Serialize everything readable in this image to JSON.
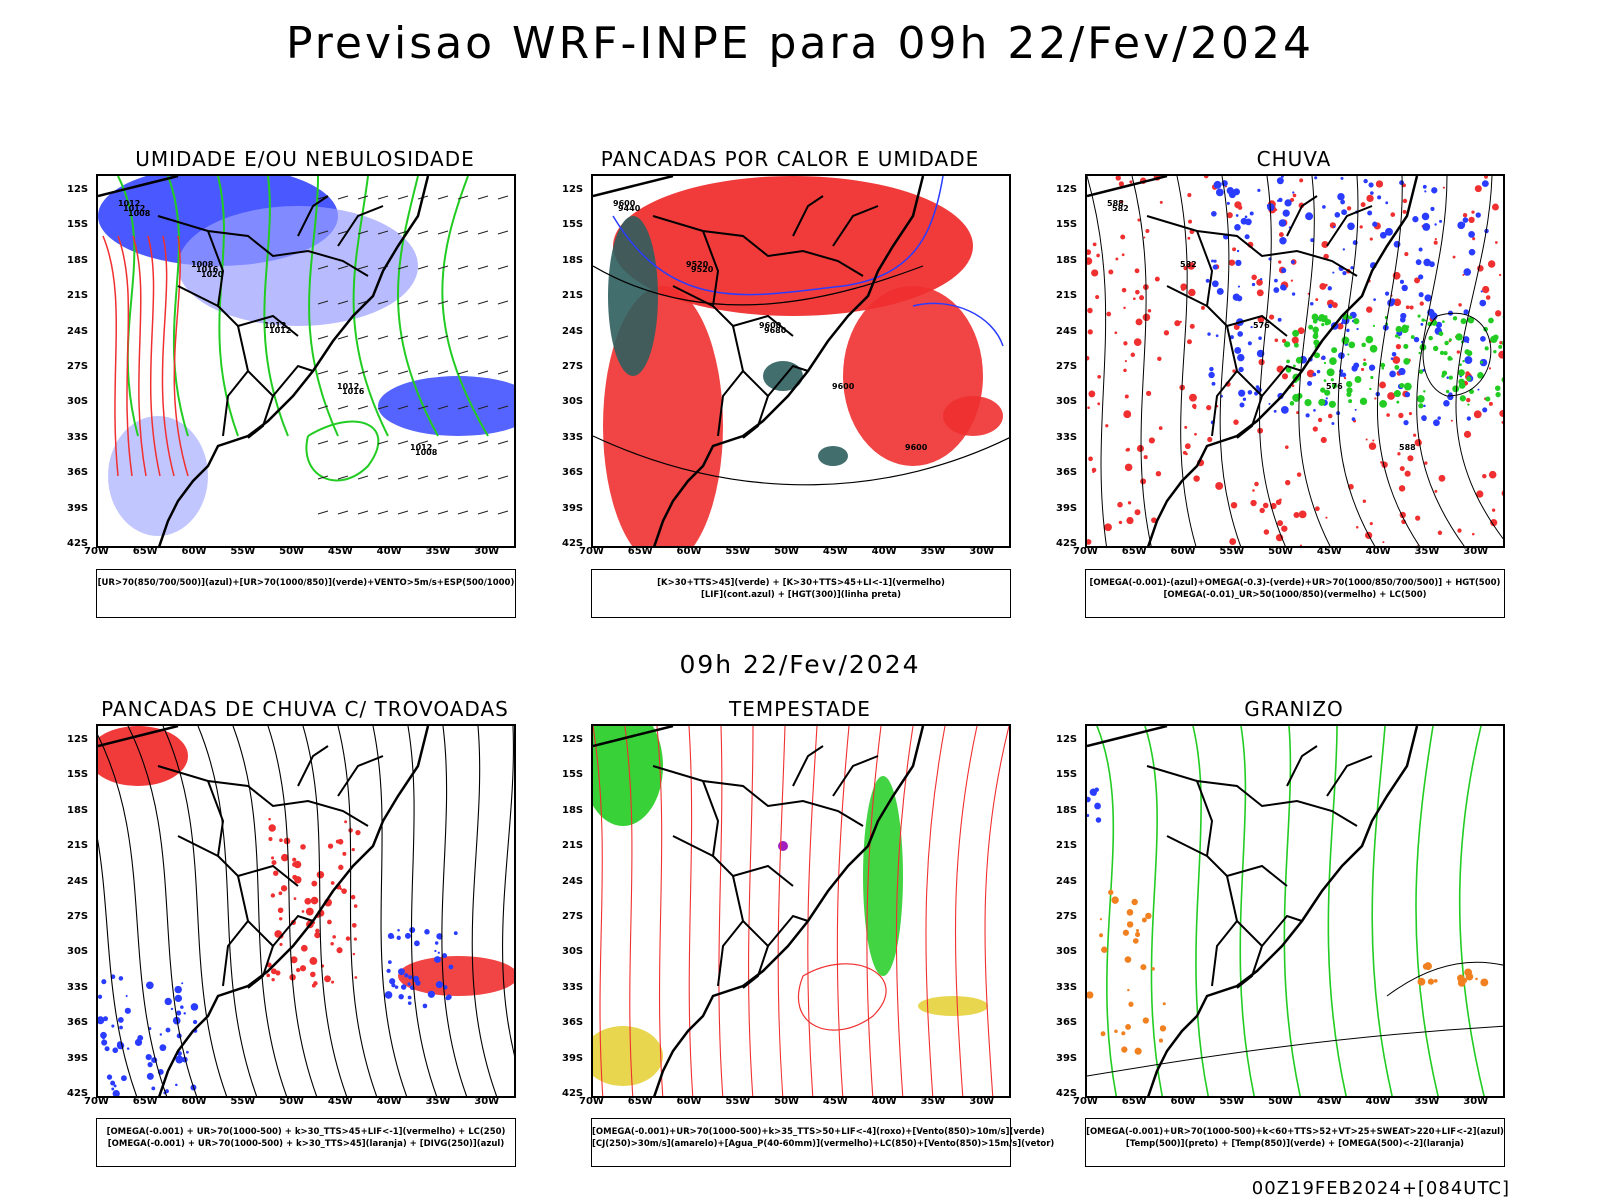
{
  "title": "Previsao WRF-INPE  para 09h 22/Fev/2024",
  "subtitle": "09h 22/Fev/2024",
  "run_stamp": "00Z19FEB2024+[084UTC]",
  "lat_ticks": [
    "12S",
    "15S",
    "18S",
    "21S",
    "24S",
    "27S",
    "30S",
    "33S",
    "36S",
    "39S",
    "42S"
  ],
  "lon_ticks": [
    "70W",
    "65W",
    "60W",
    "55W",
    "50W",
    "45W",
    "40W",
    "35W",
    "30W"
  ],
  "colors": {
    "blue": "#2a3cff",
    "light_blue": "#9aa0ff",
    "green": "#22cc22",
    "red": "#f03030",
    "dark_teal": "#2f5e5e",
    "yellow": "#e6d23c",
    "orange": "#f08020"
  },
  "panels": [
    {
      "title": "UMIDADE E/OU NEBULOSIDADE",
      "legend": [
        "[UR>70(850/700/500)](azul)+[UR>70(1000/850)](verde)+VENTO>5m/s+ESP(500/1000)"
      ],
      "contour_labels": [
        "1012",
        "1008",
        "1012",
        "1012",
        "1012",
        "1012",
        "1016",
        "1012",
        "1016",
        "1008",
        "1008",
        "1020"
      ]
    },
    {
      "title": "PANCADAS POR CALOR E UMIDADE",
      "legend": [
        "[K>30+TTS>45](verde) + [K>30+TTS>45+LI<-1](vermelho)",
        "[LIF](cont.azul) + [HGT(300)](linha preta)"
      ],
      "contour_labels": [
        "9600",
        "9520",
        "9600",
        "9600",
        "9600",
        "9440",
        "9520",
        "9680"
      ]
    },
    {
      "title": "CHUVA",
      "legend": [
        "[OMEGA(-0.001)-(azul)+OMEGA(-0.3)-(verde)+UR>70(1000/850/700/500)] + HGT(500)",
        "[OMEGA(-0.01)_UR>50(1000/850)(vermelho) + LC(500)"
      ],
      "contour_labels": [
        "588",
        "582",
        "576",
        "576",
        "588",
        "582"
      ]
    },
    {
      "title": "PANCADAS DE CHUVA C/ TROVOADAS",
      "legend": [
        "[OMEGA(-0.001) + UR>70(1000-500) + k>30_TTS>45+LIF<-1](vermelho) + LC(250)",
        "[OMEGA(-0.001) + UR>70(1000-500) + k>30_TTS>45](laranja) + [DIVG(250)](azul)"
      ],
      "contour_labels": []
    },
    {
      "title": "TEMPESTADE",
      "legend": [
        "[OMEGA(-0.001)+UR>70(1000-500)+k>35_TTS>50+LIF<-4](roxo)+[Vento(850)>10m/s](verde)",
        "[CJ(250)>30m/s](amarelo)+[Agua_P(40-60mm)](vermelho)+LC(850)+[Vento(850)>15m/s](vetor)"
      ],
      "contour_labels": []
    },
    {
      "title": "GRANIZO",
      "legend": [
        "[OMEGA(-0.001)+UR>70(1000-500)+k<60+TTS>52+VT>25+SWEAT>220+LIF<-2](azul)",
        "[Temp(500)](preto) + [Temp(850)](verde) + [OMEGA(500)<-2](laranja)"
      ],
      "contour_labels": []
    }
  ]
}
